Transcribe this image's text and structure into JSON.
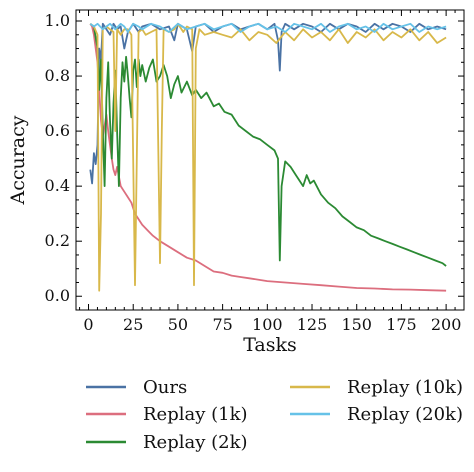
{
  "chart_data": {
    "type": "line",
    "title": "",
    "xlabel": "Tasks",
    "ylabel": "Accuracy",
    "xlim": [
      -7,
      210
    ],
    "ylim": [
      -0.05,
      1.04
    ],
    "xticks": [
      "0",
      "25",
      "50",
      "75",
      "100",
      "125",
      "150",
      "175",
      "200"
    ],
    "yticks": [
      "0.0",
      "0.2",
      "0.4",
      "0.6",
      "0.8",
      "1.0"
    ],
    "grid": false,
    "legend_position": "bottom",
    "series": [
      {
        "name": "Ours",
        "color": "#4a72a4",
        "points": [
          [
            1,
            0.46
          ],
          [
            2,
            0.41
          ],
          [
            3,
            0.52
          ],
          [
            4,
            0.48
          ],
          [
            5,
            0.55
          ],
          [
            6,
            0.9
          ],
          [
            7,
            0.86
          ],
          [
            8,
            0.99
          ],
          [
            10,
            0.97
          ],
          [
            12,
            0.95
          ],
          [
            14,
            0.99
          ],
          [
            16,
            0.97
          ],
          [
            18,
            0.98
          ],
          [
            20,
            0.9
          ],
          [
            22,
            0.96
          ],
          [
            25,
            0.99
          ],
          [
            28,
            0.96
          ],
          [
            30,
            0.98
          ],
          [
            35,
            0.99
          ],
          [
            40,
            0.97
          ],
          [
            45,
            0.98
          ],
          [
            48,
            0.93
          ],
          [
            50,
            0.99
          ],
          [
            55,
            0.97
          ],
          [
            58,
            0.89
          ],
          [
            60,
            0.98
          ],
          [
            65,
            0.99
          ],
          [
            70,
            0.96
          ],
          [
            75,
            0.98
          ],
          [
            80,
            0.99
          ],
          [
            85,
            0.97
          ],
          [
            90,
            0.98
          ],
          [
            95,
            0.99
          ],
          [
            100,
            0.97
          ],
          [
            104,
            0.99
          ],
          [
            106,
            0.93
          ],
          [
            107,
            0.82
          ],
          [
            108,
            0.96
          ],
          [
            110,
            0.99
          ],
          [
            115,
            0.97
          ],
          [
            120,
            0.99
          ],
          [
            125,
            0.98
          ],
          [
            130,
            0.96
          ],
          [
            135,
            0.99
          ],
          [
            140,
            0.97
          ],
          [
            145,
            0.99
          ],
          [
            150,
            0.98
          ],
          [
            155,
            0.96
          ],
          [
            160,
            0.99
          ],
          [
            165,
            0.97
          ],
          [
            170,
            0.99
          ],
          [
            175,
            0.98
          ],
          [
            180,
            0.96
          ],
          [
            185,
            0.99
          ],
          [
            190,
            0.97
          ],
          [
            195,
            0.98
          ],
          [
            200,
            0.97
          ]
        ]
      },
      {
        "name": "Replay (1k)",
        "color": "#dc6e7e",
        "points": [
          [
            1,
            0.99
          ],
          [
            2,
            0.98
          ],
          [
            3,
            0.95
          ],
          [
            4,
            0.9
          ],
          [
            5,
            0.85
          ],
          [
            6,
            0.75
          ],
          [
            7,
            0.64
          ],
          [
            8,
            0.58
          ],
          [
            9,
            0.62
          ],
          [
            10,
            0.66
          ],
          [
            11,
            0.6
          ],
          [
            12,
            0.55
          ],
          [
            13,
            0.5
          ],
          [
            14,
            0.46
          ],
          [
            15,
            0.44
          ],
          [
            16,
            0.47
          ],
          [
            18,
            0.4
          ],
          [
            20,
            0.38
          ],
          [
            22,
            0.36
          ],
          [
            24,
            0.34
          ],
          [
            26,
            0.3
          ],
          [
            28,
            0.28
          ],
          [
            30,
            0.26
          ],
          [
            33,
            0.24
          ],
          [
            36,
            0.22
          ],
          [
            40,
            0.2
          ],
          [
            45,
            0.18
          ],
          [
            50,
            0.16
          ],
          [
            55,
            0.14
          ],
          [
            60,
            0.13
          ],
          [
            65,
            0.11
          ],
          [
            70,
            0.09
          ],
          [
            75,
            0.085
          ],
          [
            80,
            0.075
          ],
          [
            85,
            0.07
          ],
          [
            90,
            0.065
          ],
          [
            100,
            0.055
          ],
          [
            110,
            0.05
          ],
          [
            120,
            0.045
          ],
          [
            130,
            0.04
          ],
          [
            140,
            0.035
          ],
          [
            150,
            0.03
          ],
          [
            160,
            0.028
          ],
          [
            170,
            0.025
          ],
          [
            180,
            0.024
          ],
          [
            190,
            0.022
          ],
          [
            200,
            0.02
          ]
        ]
      },
      {
        "name": "Replay (2k)",
        "color": "#2b8a33",
        "points": [
          [
            1,
            0.99
          ],
          [
            3,
            0.98
          ],
          [
            5,
            0.9
          ],
          [
            6,
            0.75
          ],
          [
            7,
            0.86
          ],
          [
            8,
            0.6
          ],
          [
            9,
            0.4
          ],
          [
            10,
            0.72
          ],
          [
            11,
            0.85
          ],
          [
            12,
            0.64
          ],
          [
            13,
            0.5
          ],
          [
            14,
            0.7
          ],
          [
            15,
            0.82
          ],
          [
            16,
            0.6
          ],
          [
            17,
            0.4
          ],
          [
            18,
            0.72
          ],
          [
            19,
            0.85
          ],
          [
            20,
            0.78
          ],
          [
            21,
            0.87
          ],
          [
            22,
            0.8
          ],
          [
            23,
            0.72
          ],
          [
            24,
            0.65
          ],
          [
            25,
            0.82
          ],
          [
            26,
            0.86
          ],
          [
            27,
            0.76
          ],
          [
            28,
            0.86
          ],
          [
            29,
            0.8
          ],
          [
            30,
            0.84
          ],
          [
            32,
            0.78
          ],
          [
            34,
            0.83
          ],
          [
            36,
            0.86
          ],
          [
            38,
            0.78
          ],
          [
            40,
            0.8
          ],
          [
            42,
            0.84
          ],
          [
            44,
            0.8
          ],
          [
            46,
            0.72
          ],
          [
            48,
            0.77
          ],
          [
            50,
            0.8
          ],
          [
            52,
            0.74
          ],
          [
            55,
            0.78
          ],
          [
            58,
            0.73
          ],
          [
            60,
            0.75
          ],
          [
            63,
            0.72
          ],
          [
            66,
            0.74
          ],
          [
            70,
            0.69
          ],
          [
            73,
            0.7
          ],
          [
            76,
            0.67
          ],
          [
            80,
            0.66
          ],
          [
            84,
            0.62
          ],
          [
            88,
            0.6
          ],
          [
            92,
            0.58
          ],
          [
            96,
            0.57
          ],
          [
            100,
            0.55
          ],
          [
            104,
            0.53
          ],
          [
            106,
            0.5
          ],
          [
            107,
            0.13
          ],
          [
            108,
            0.4
          ],
          [
            110,
            0.49
          ],
          [
            113,
            0.47
          ],
          [
            116,
            0.44
          ],
          [
            120,
            0.4
          ],
          [
            122,
            0.44
          ],
          [
            124,
            0.41
          ],
          [
            126,
            0.42
          ],
          [
            130,
            0.37
          ],
          [
            134,
            0.34
          ],
          [
            138,
            0.32
          ],
          [
            142,
            0.29
          ],
          [
            146,
            0.27
          ],
          [
            150,
            0.25
          ],
          [
            154,
            0.24
          ],
          [
            158,
            0.22
          ],
          [
            162,
            0.21
          ],
          [
            166,
            0.2
          ],
          [
            170,
            0.19
          ],
          [
            174,
            0.18
          ],
          [
            178,
            0.17
          ],
          [
            182,
            0.16
          ],
          [
            186,
            0.15
          ],
          [
            190,
            0.14
          ],
          [
            194,
            0.13
          ],
          [
            198,
            0.12
          ],
          [
            200,
            0.11
          ]
        ]
      },
      {
        "name": "Replay (10k)",
        "color": "#d8b84a",
        "points": [
          [
            1,
            0.99
          ],
          [
            3,
            0.98
          ],
          [
            5,
            0.95
          ],
          [
            6,
            0.02
          ],
          [
            7,
            0.3
          ],
          [
            8,
            0.97
          ],
          [
            10,
            0.98
          ],
          [
            12,
            0.97
          ],
          [
            14,
            0.96
          ],
          [
            15,
            0.6
          ],
          [
            16,
            0.97
          ],
          [
            18,
            0.95
          ],
          [
            20,
            0.97
          ],
          [
            22,
            0.97
          ],
          [
            24,
            0.95
          ],
          [
            26,
            0.04
          ],
          [
            27,
            0.5
          ],
          [
            28,
            0.96
          ],
          [
            30,
            0.97
          ],
          [
            32,
            0.95
          ],
          [
            35,
            0.96
          ],
          [
            38,
            0.97
          ],
          [
            40,
            0.12
          ],
          [
            41,
            0.6
          ],
          [
            42,
            0.97
          ],
          [
            45,
            0.96
          ],
          [
            48,
            0.97
          ],
          [
            50,
            0.99
          ],
          [
            53,
            0.96
          ],
          [
            55,
            0.98
          ],
          [
            58,
            0.97
          ],
          [
            59,
            0.04
          ],
          [
            60,
            0.9
          ],
          [
            62,
            0.97
          ],
          [
            65,
            0.95
          ],
          [
            70,
            0.96
          ],
          [
            75,
            0.95
          ],
          [
            80,
            0.94
          ],
          [
            85,
            0.97
          ],
          [
            90,
            0.93
          ],
          [
            95,
            0.96
          ],
          [
            100,
            0.95
          ],
          [
            105,
            0.92
          ],
          [
            110,
            0.96
          ],
          [
            115,
            0.93
          ],
          [
            120,
            0.97
          ],
          [
            125,
            0.94
          ],
          [
            130,
            0.96
          ],
          [
            135,
            0.93
          ],
          [
            140,
            0.97
          ],
          [
            145,
            0.92
          ],
          [
            150,
            0.96
          ],
          [
            155,
            0.94
          ],
          [
            160,
            0.97
          ],
          [
            165,
            0.93
          ],
          [
            170,
            0.96
          ],
          [
            175,
            0.94
          ],
          [
            180,
            0.97
          ],
          [
            185,
            0.93
          ],
          [
            190,
            0.96
          ],
          [
            195,
            0.92
          ],
          [
            200,
            0.94
          ]
        ]
      },
      {
        "name": "Replay (20k)",
        "color": "#66c2e8",
        "points": [
          [
            1,
            0.99
          ],
          [
            3,
            0.98
          ],
          [
            5,
            0.99
          ],
          [
            8,
            0.97
          ],
          [
            10,
            0.98
          ],
          [
            12,
            0.99
          ],
          [
            15,
            0.97
          ],
          [
            18,
            0.99
          ],
          [
            20,
            0.98
          ],
          [
            22,
            0.96
          ],
          [
            25,
            0.99
          ],
          [
            28,
            0.98
          ],
          [
            30,
            0.97
          ],
          [
            35,
            0.99
          ],
          [
            40,
            0.98
          ],
          [
            45,
            0.96
          ],
          [
            50,
            0.99
          ],
          [
            55,
            0.97
          ],
          [
            60,
            0.98
          ],
          [
            65,
            0.99
          ],
          [
            70,
            0.97
          ],
          [
            75,
            0.98
          ],
          [
            80,
            0.99
          ],
          [
            85,
            0.96
          ],
          [
            90,
            0.98
          ],
          [
            95,
            0.99
          ],
          [
            100,
            0.97
          ],
          [
            105,
            0.98
          ],
          [
            110,
            0.96
          ],
          [
            115,
            0.99
          ],
          [
            120,
            0.98
          ],
          [
            125,
            0.97
          ],
          [
            130,
            0.99
          ],
          [
            135,
            0.96
          ],
          [
            140,
            0.98
          ],
          [
            145,
            0.99
          ],
          [
            150,
            0.97
          ],
          [
            155,
            0.98
          ],
          [
            160,
            0.96
          ],
          [
            165,
            0.99
          ],
          [
            170,
            0.97
          ],
          [
            175,
            0.98
          ],
          [
            180,
            0.99
          ],
          [
            185,
            0.96
          ],
          [
            190,
            0.98
          ],
          [
            195,
            0.97
          ],
          [
            200,
            0.98
          ]
        ]
      }
    ]
  }
}
